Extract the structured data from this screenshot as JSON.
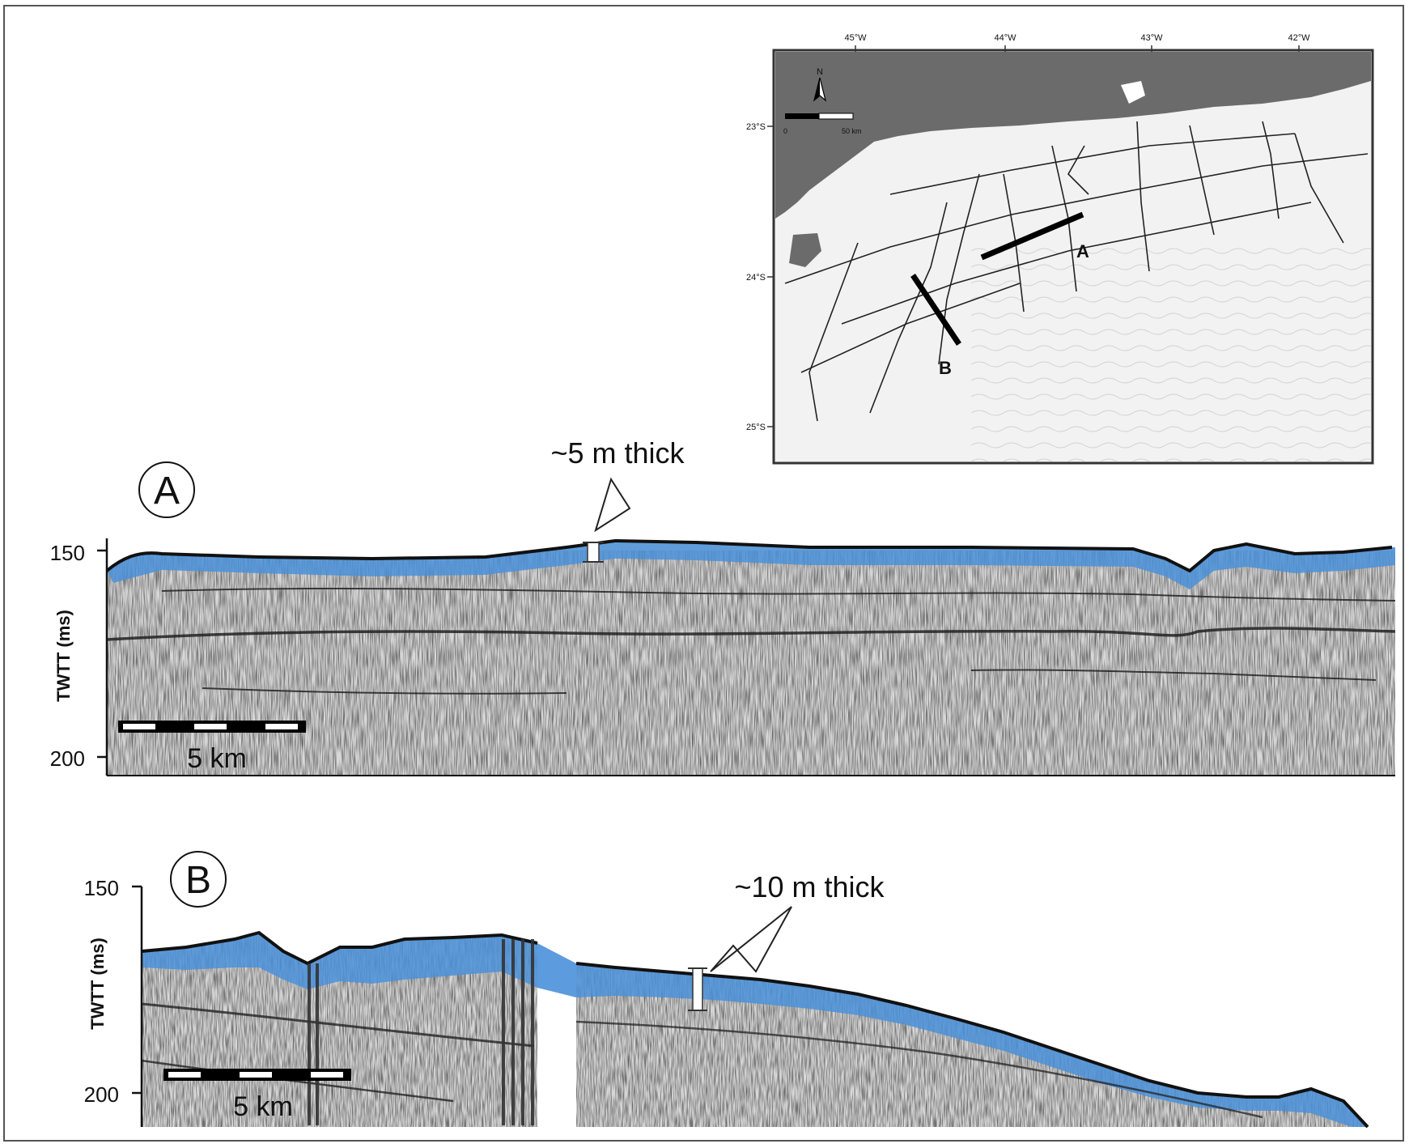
{
  "figure": {
    "map": {
      "lon_labels": [
        "45°W",
        "44°W",
        "43°W",
        "42°W"
      ],
      "lat_labels": [
        "23°S",
        "24°S",
        "25°S"
      ],
      "north_label": "N",
      "scale_labels": [
        "0",
        "50 km"
      ],
      "line_labels": [
        "A",
        "B"
      ]
    },
    "panel_a": {
      "label": "A",
      "annotation": "~5 m thick",
      "y_axis_label": "TWTT (ms)",
      "y_ticks": [
        "150",
        "200"
      ],
      "scale_bar": "5  km"
    },
    "panel_b": {
      "label": "B",
      "annotation": "~10 m thick",
      "y_axis_label": "TWTT (ms)",
      "y_ticks": [
        "150",
        "200"
      ],
      "scale_bar": "5  km"
    }
  },
  "colors": {
    "sediment_layer": "#4a90d9",
    "land": "#6b6b6b",
    "seismic_bg": "#d9d9d9",
    "frame": "#555555"
  }
}
